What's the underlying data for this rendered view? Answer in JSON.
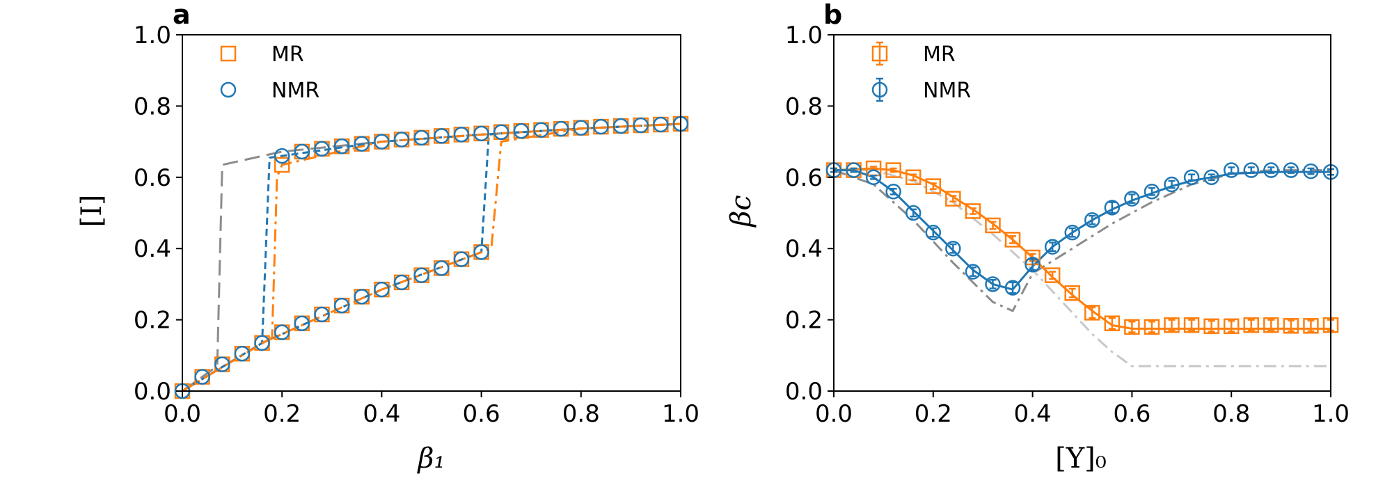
{
  "colors": {
    "mr": "#ff7f0e",
    "nmr": "#1f77b4",
    "gray": "#8c8c8c",
    "gray_light": "#c8c8c8"
  },
  "chart_data": [
    {
      "type": "line",
      "panel_label": "a",
      "xlabel": "β₁",
      "ylabel": "[I]",
      "xlim": [
        0,
        1
      ],
      "ylim": [
        0,
        1
      ],
      "xticks": [
        "0.0",
        "0.2",
        "0.4",
        "0.6",
        "0.8",
        "1.0"
      ],
      "yticks": [
        "0.0",
        "0.2",
        "0.4",
        "0.6",
        "0.8",
        "1.0"
      ],
      "legend": {
        "placement": "top-left",
        "entries": [
          {
            "label": "MR",
            "marker": "square",
            "color": "#ff7f0e"
          },
          {
            "label": "NMR",
            "marker": "circle",
            "color": "#1f77b4"
          }
        ]
      },
      "series": [
        {
          "name": "MR",
          "marker": "square",
          "color": "#ff7f0e",
          "x": [
            0.0,
            0.04,
            0.08,
            0.12,
            0.16,
            0.2,
            0.24,
            0.28,
            0.32,
            0.36,
            0.4,
            0.44,
            0.48,
            0.52,
            0.56,
            0.6,
            0.2,
            0.24,
            0.28,
            0.32,
            0.36,
            0.4,
            0.44,
            0.48,
            0.52,
            0.56,
            0.6,
            0.64,
            0.68,
            0.72,
            0.76,
            0.8,
            0.84,
            0.88,
            0.92,
            0.96,
            1.0
          ],
          "y": [
            0.0,
            0.04,
            0.075,
            0.105,
            0.135,
            0.165,
            0.19,
            0.215,
            0.24,
            0.265,
            0.285,
            0.305,
            0.325,
            0.345,
            0.37,
            0.39,
            0.635,
            0.672,
            0.68,
            0.687,
            0.694,
            0.7,
            0.706,
            0.711,
            0.716,
            0.72,
            0.723,
            0.727,
            0.73,
            0.733,
            0.736,
            0.739,
            0.742,
            0.744,
            0.746,
            0.748,
            0.75
          ]
        },
        {
          "name": "NMR",
          "marker": "circle",
          "color": "#1f77b4",
          "x": [
            0.0,
            0.04,
            0.08,
            0.12,
            0.16,
            0.2,
            0.24,
            0.28,
            0.32,
            0.36,
            0.4,
            0.44,
            0.48,
            0.52,
            0.56,
            0.6,
            0.2,
            0.24,
            0.28,
            0.32,
            0.36,
            0.4,
            0.44,
            0.48,
            0.52,
            0.56,
            0.6,
            0.64,
            0.68,
            0.72,
            0.76,
            0.8,
            0.84,
            0.88,
            0.92,
            0.96,
            1.0
          ],
          "y": [
            0.0,
            0.04,
            0.075,
            0.105,
            0.135,
            0.165,
            0.19,
            0.215,
            0.24,
            0.265,
            0.285,
            0.305,
            0.325,
            0.345,
            0.37,
            0.39,
            0.66,
            0.672,
            0.68,
            0.687,
            0.694,
            0.7,
            0.706,
            0.711,
            0.716,
            0.72,
            0.723,
            0.727,
            0.73,
            0.733,
            0.736,
            0.739,
            0.742,
            0.744,
            0.746,
            0.748,
            0.75
          ]
        }
      ],
      "curves": [
        {
          "color": "#8c8c8c",
          "dash": "long",
          "x": [
            0.0,
            0.07,
            0.08,
            0.2,
            0.4,
            0.6,
            0.8,
            1.0
          ],
          "y": [
            0.0,
            0.07,
            0.635,
            0.672,
            0.7,
            0.72,
            0.737,
            0.75
          ]
        },
        {
          "color": "#1f77b4",
          "dash": "short",
          "x": [
            0.0,
            0.16,
            0.175,
            0.2,
            0.4,
            0.6,
            0.8,
            1.0
          ],
          "y": [
            0.0,
            0.135,
            0.655,
            0.66,
            0.7,
            0.72,
            0.737,
            0.75
          ]
        },
        {
          "color": "#1f77b4",
          "dash": "short",
          "x": [
            0.16,
            0.4,
            0.6,
            0.615,
            0.64,
            0.8,
            1.0
          ],
          "y": [
            0.135,
            0.285,
            0.39,
            0.72,
            0.723,
            0.737,
            0.75
          ]
        },
        {
          "color": "#ff7f0e",
          "dash": "dashdot",
          "x": [
            0.0,
            0.18,
            0.19,
            0.2,
            0.4,
            0.6,
            0.8,
            1.0
          ],
          "y": [
            0.0,
            0.15,
            0.6,
            0.635,
            0.7,
            0.72,
            0.737,
            0.75
          ]
        },
        {
          "color": "#ff7f0e",
          "dash": "dashdot",
          "x": [
            0.16,
            0.4,
            0.62,
            0.64,
            0.8,
            1.0
          ],
          "y": [
            0.135,
            0.285,
            0.4,
            0.7,
            0.737,
            0.75
          ]
        }
      ]
    },
    {
      "type": "line",
      "panel_label": "b",
      "xlabel": "[Y]₀",
      "ylabel": "βc",
      "xlim": [
        0,
        1
      ],
      "ylim": [
        0,
        1
      ],
      "xticks": [
        "0.0",
        "0.2",
        "0.4",
        "0.6",
        "0.8",
        "1.0"
      ],
      "yticks": [
        "0.0",
        "0.2",
        "0.4",
        "0.6",
        "0.8",
        "1.0"
      ],
      "legend": {
        "placement": "top-left",
        "entries": [
          {
            "label": "MR",
            "marker": "square",
            "color": "#ff7f0e"
          },
          {
            "label": "NMR",
            "marker": "circle",
            "color": "#1f77b4"
          }
        ]
      },
      "series": [
        {
          "name": "MR",
          "marker": "square",
          "color": "#ff7f0e",
          "x": [
            0.0,
            0.04,
            0.08,
            0.12,
            0.16,
            0.2,
            0.24,
            0.28,
            0.32,
            0.36,
            0.4,
            0.44,
            0.48,
            0.52,
            0.56,
            0.6,
            0.64,
            0.68,
            0.72,
            0.76,
            0.8,
            0.84,
            0.88,
            0.92,
            0.96,
            1.0
          ],
          "y": [
            0.62,
            0.62,
            0.625,
            0.62,
            0.6,
            0.575,
            0.54,
            0.505,
            0.465,
            0.425,
            0.375,
            0.325,
            0.275,
            0.22,
            0.19,
            0.18,
            0.18,
            0.185,
            0.185,
            0.182,
            0.182,
            0.185,
            0.185,
            0.183,
            0.183,
            0.185
          ],
          "error": [
            0.005,
            0.005,
            0.005,
            0.005,
            0.008,
            0.008,
            0.008,
            0.008,
            0.01,
            0.01,
            0.01,
            0.01,
            0.012,
            0.015,
            0.015,
            0.015,
            0.015,
            0.015,
            0.015,
            0.015,
            0.015,
            0.015,
            0.015,
            0.015,
            0.015,
            0.015
          ]
        },
        {
          "name": "NMR",
          "marker": "circle",
          "color": "#1f77b4",
          "x": [
            0.0,
            0.04,
            0.08,
            0.12,
            0.16,
            0.2,
            0.24,
            0.28,
            0.32,
            0.36,
            0.4,
            0.44,
            0.48,
            0.52,
            0.56,
            0.6,
            0.64,
            0.68,
            0.72,
            0.76,
            0.8,
            0.84,
            0.88,
            0.92,
            0.96,
            1.0
          ],
          "y": [
            0.62,
            0.62,
            0.6,
            0.56,
            0.5,
            0.445,
            0.4,
            0.335,
            0.3,
            0.29,
            0.355,
            0.405,
            0.445,
            0.48,
            0.515,
            0.54,
            0.56,
            0.58,
            0.6,
            0.6,
            0.62,
            0.62,
            0.62,
            0.62,
            0.617,
            0.615
          ],
          "error": [
            0.005,
            0.005,
            0.005,
            0.008,
            0.01,
            0.012,
            0.012,
            0.012,
            0.012,
            0.015,
            0.015,
            0.012,
            0.012,
            0.012,
            0.015,
            0.012,
            0.01,
            0.01,
            0.008,
            0.008,
            0.008,
            0.008,
            0.008,
            0.008,
            0.008,
            0.008
          ]
        }
      ],
      "curves": [
        {
          "color": "#8c8c8c",
          "dash": "dashdot",
          "x": [
            0.0,
            0.08,
            0.16,
            0.24,
            0.32,
            0.36,
            0.4,
            0.48,
            0.56,
            0.64,
            0.72,
            0.8,
            0.88,
            1.0
          ],
          "y": [
            0.62,
            0.58,
            0.48,
            0.36,
            0.25,
            0.225,
            0.33,
            0.4,
            0.47,
            0.53,
            0.58,
            0.61,
            0.62,
            0.62
          ]
        },
        {
          "color": "#c8c8c8",
          "dash": "dashdot",
          "x": [
            0.0,
            0.08,
            0.16,
            0.24,
            0.32,
            0.4,
            0.48,
            0.52,
            0.56,
            0.6,
            0.7,
            0.8,
            1.0
          ],
          "y": [
            0.62,
            0.62,
            0.59,
            0.53,
            0.44,
            0.34,
            0.22,
            0.16,
            0.11,
            0.07,
            0.07,
            0.07,
            0.07
          ]
        },
        {
          "color": "#ff7f0e",
          "dash": "solid",
          "x": [
            0.0,
            0.08,
            0.12,
            0.16,
            0.2,
            0.24,
            0.28,
            0.32,
            0.36,
            0.4,
            0.44,
            0.48,
            0.52,
            0.56,
            0.6,
            0.7,
            0.8,
            0.9,
            1.0
          ],
          "y": [
            0.62,
            0.625,
            0.62,
            0.605,
            0.58,
            0.545,
            0.51,
            0.47,
            0.425,
            0.375,
            0.32,
            0.27,
            0.225,
            0.185,
            0.175,
            0.175,
            0.175,
            0.175,
            0.175
          ]
        },
        {
          "color": "#1f77b4",
          "dash": "solid",
          "x": [
            0.0,
            0.04,
            0.08,
            0.12,
            0.16,
            0.2,
            0.24,
            0.28,
            0.32,
            0.36,
            0.4,
            0.44,
            0.48,
            0.52,
            0.56,
            0.6,
            0.64,
            0.68,
            0.72,
            0.76,
            0.8,
            0.88,
            1.0
          ],
          "y": [
            0.62,
            0.62,
            0.6,
            0.56,
            0.505,
            0.45,
            0.395,
            0.34,
            0.3,
            0.285,
            0.35,
            0.405,
            0.445,
            0.48,
            0.51,
            0.535,
            0.555,
            0.575,
            0.59,
            0.6,
            0.61,
            0.615,
            0.615
          ]
        }
      ]
    }
  ]
}
